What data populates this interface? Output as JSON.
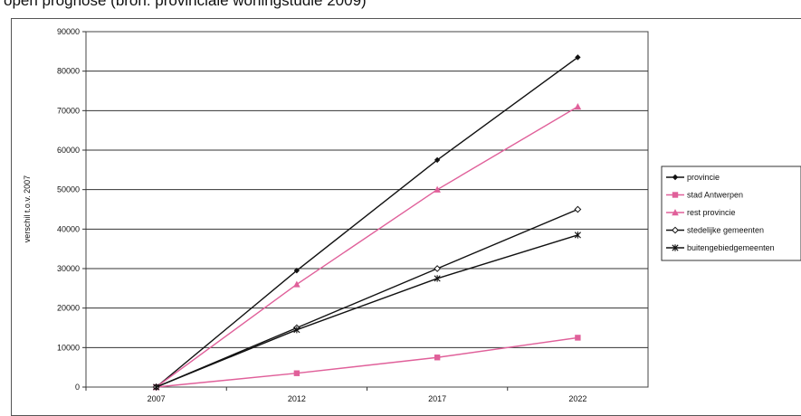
{
  "caption": "open prognose (bron: provinciale woningstudie 2009)",
  "chart_data": {
    "type": "line",
    "x": [
      "2007",
      "2012",
      "2017",
      "2022"
    ],
    "ylabel": "verschil t.o.v. 2007",
    "ylim": [
      0,
      90000
    ],
    "yticks": [
      "90000",
      "80000",
      "70000",
      "60000",
      "50000",
      "40000",
      "30000",
      "20000",
      "10000",
      "0"
    ],
    "grid": true,
    "legend_position": "right",
    "series": [
      {
        "name": "provincie",
        "values": [
          0,
          29500,
          57500,
          83500
        ],
        "color": "#111111",
        "marker": "diamond"
      },
      {
        "name": "stad Antwerpen",
        "values": [
          0,
          3500,
          7500,
          12500
        ],
        "color": "#e0609a",
        "marker": "square"
      },
      {
        "name": "rest provincie",
        "values": [
          0,
          26000,
          50000,
          71000
        ],
        "color": "#e0609a",
        "marker": "triangle"
      },
      {
        "name": "stedelijke gemeenten",
        "values": [
          0,
          15000,
          30000,
          45000
        ],
        "color": "#111111",
        "marker": "diamond-open"
      },
      {
        "name": "buitengebiedgemeenten",
        "values": [
          0,
          14500,
          27500,
          38500
        ],
        "color": "#111111",
        "marker": "star"
      }
    ]
  }
}
